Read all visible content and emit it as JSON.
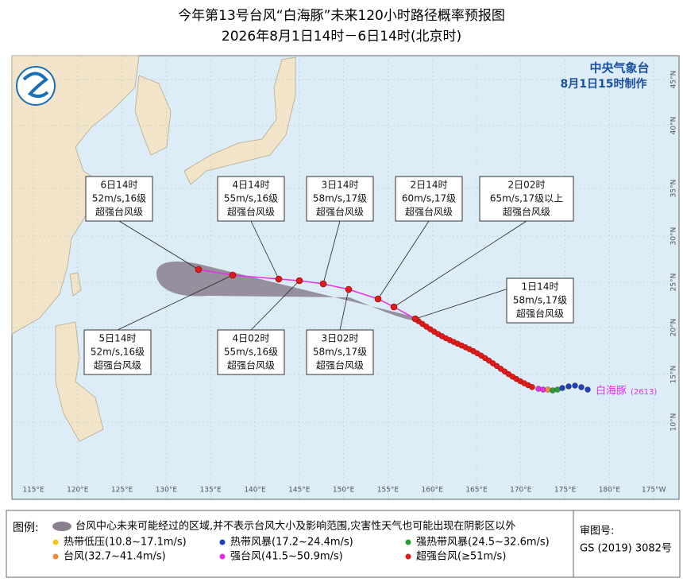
{
  "header": {
    "title": "今年第13号台风“白海豚”未来120小时路径概率预报图",
    "subtitle": "2026年8月1日14时－6日14时(北京时)"
  },
  "agency": {
    "name": "中央气象台",
    "issued": "8月1日15时制作"
  },
  "forecasts": [
    {
      "time": "1日14时",
      "wind": "58m/s,17级",
      "level": "超强台风级"
    },
    {
      "time": "2日02时",
      "wind": "65m/s,17级以上",
      "level": "超强台风级"
    },
    {
      "time": "2日14时",
      "wind": "60m/s,17级",
      "level": "超强台风级"
    },
    {
      "time": "3日02时",
      "wind": "58m/s,17级",
      "level": "超强台风级"
    },
    {
      "time": "3日14时",
      "wind": "58m/s,17级",
      "level": "超强台风级"
    },
    {
      "time": "4日02时",
      "wind": "55m/s,16级",
      "level": "超强台风级"
    },
    {
      "time": "4日14时",
      "wind": "55m/s,16级",
      "level": "超强台风级"
    },
    {
      "time": "5日14时",
      "wind": "52m/s,16级",
      "level": "超强台风级"
    },
    {
      "time": "6日14时",
      "wind": "52m/s,16级",
      "level": "超强台风级"
    }
  ],
  "storm": {
    "name": "白海豚",
    "code": "(2613)"
  },
  "longitude_labels": [
    "115°E",
    "120°E",
    "125°E",
    "130°E",
    "135°E",
    "140°E",
    "145°E",
    "150°E",
    "155°E",
    "160°E",
    "165°E",
    "170°E",
    "175°E",
    "180°E",
    "175°W"
  ],
  "latitude_labels": [
    "10°N",
    "15°N",
    "20°N",
    "25°N",
    "30°N",
    "35°N",
    "40°N",
    "45°N"
  ],
  "legend": {
    "title": "图例:",
    "cone": "台风中心未来可能经过的区域,并不表示台风大小及影响范围,灾害性天气也可能出现在阴影区以外",
    "items": [
      {
        "label": "热带低压(10.8~17.1m/s)",
        "color": "#f5c518"
      },
      {
        "label": "热带风暴(17.2~24.4m/s)",
        "color": "#1f3fbf"
      },
      {
        "label": "强热带风暴(24.5~32.6m/s)",
        "color": "#2e9b3a"
      },
      {
        "label": "台风(32.7~41.4m/s)",
        "color": "#f08a3c"
      },
      {
        "label": "强台风(41.5~50.9m/s)",
        "color": "#e62ee6"
      },
      {
        "label": "超强台风(≥51m/s)",
        "color": "#e01b1b"
      }
    ]
  },
  "approval": {
    "label": "审图号:",
    "number": "GS (2019) 3082号"
  }
}
